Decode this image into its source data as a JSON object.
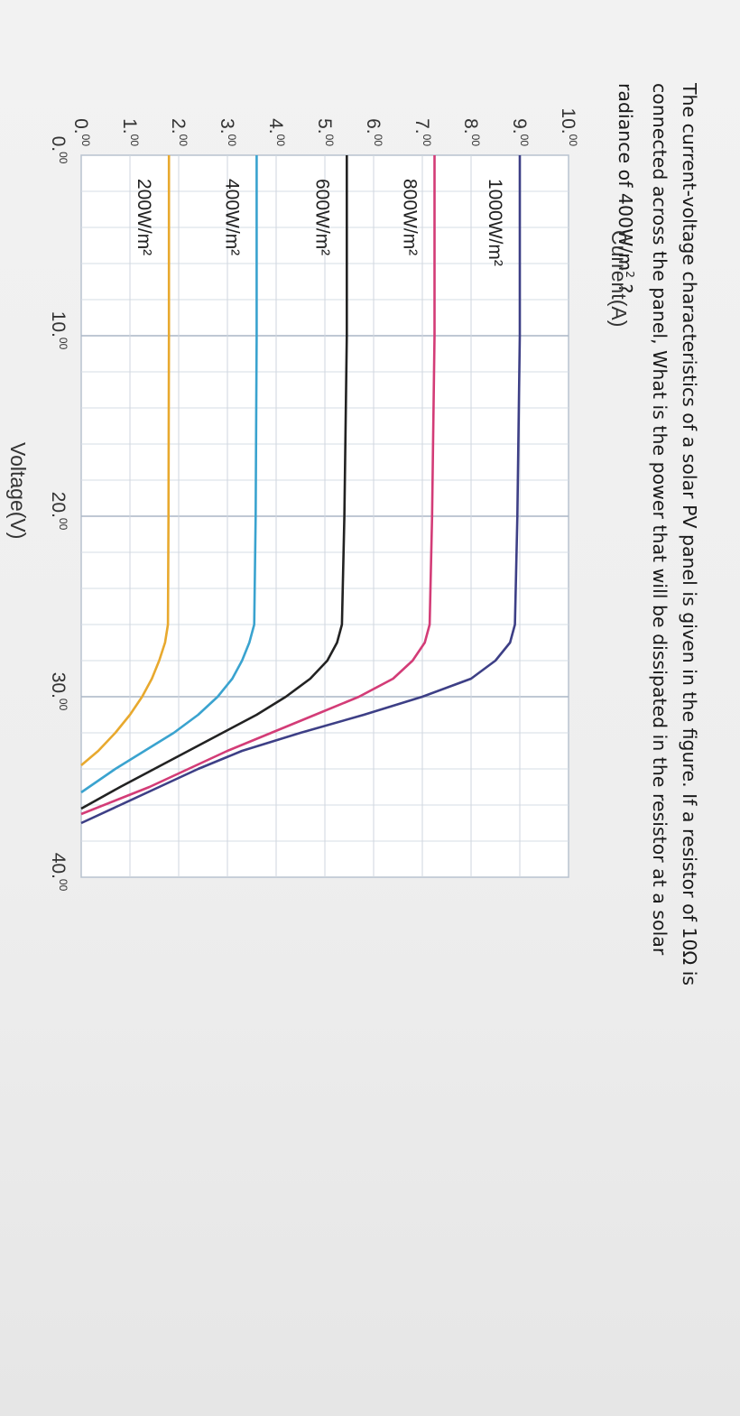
{
  "question": {
    "line1": "The current-voltage characteristics of a solar PV panel is given in the figure. If a resistor of 10Ω is",
    "line2": "connected across the panel, What is the power that will be dissipated in the resistor at a solar",
    "line3_pre": "radiance of 400W/m",
    "line3_sup": "2",
    "line3_post": " ?"
  },
  "chart_data": {
    "type": "line",
    "xlabel": "Voltage(V)",
    "ylabel": "Current(A)",
    "xlim": [
      0,
      40
    ],
    "ylim": [
      0,
      10
    ],
    "x_ticks": [
      {
        "value": 0,
        "main": "0.",
        "minor": "00"
      },
      {
        "value": 10,
        "main": "10.",
        "minor": "00"
      },
      {
        "value": 20,
        "main": "20.",
        "minor": "00"
      },
      {
        "value": 30,
        "main": "30.",
        "minor": "00"
      },
      {
        "value": 40,
        "main": "40.",
        "minor": "00"
      }
    ],
    "y_ticks": [
      {
        "value": 0,
        "main": "0.",
        "minor": "00"
      },
      {
        "value": 1,
        "main": "1.",
        "minor": "00"
      },
      {
        "value": 2,
        "main": "2.",
        "minor": "00"
      },
      {
        "value": 3,
        "main": "3.",
        "minor": "00"
      },
      {
        "value": 4,
        "main": "4.",
        "minor": "00"
      },
      {
        "value": 5,
        "main": "5.",
        "minor": "00"
      },
      {
        "value": 6,
        "main": "6.",
        "minor": "00"
      },
      {
        "value": 7,
        "main": "7.",
        "minor": "00"
      },
      {
        "value": 8,
        "main": "8.",
        "minor": "00"
      },
      {
        "value": 9,
        "main": "9.",
        "minor": "00"
      },
      {
        "value": 10,
        "main": "10.",
        "minor": "00"
      }
    ],
    "grid": true,
    "series": [
      {
        "name": "1000W/m²",
        "color": "#3d3f86",
        "x": [
          0,
          10,
          20,
          26,
          27,
          28,
          29,
          30,
          31,
          32,
          33,
          34,
          35,
          36,
          37
        ],
        "y": [
          9.0,
          9.0,
          8.95,
          8.9,
          8.8,
          8.5,
          8.0,
          7.0,
          5.8,
          4.5,
          3.3,
          2.4,
          1.6,
          0.8,
          0.0
        ]
      },
      {
        "name": "800W/m²",
        "color": "#d33c77",
        "x": [
          0,
          10,
          20,
          26,
          27,
          28,
          29,
          30,
          31,
          32,
          33,
          34,
          35,
          36.5
        ],
        "y": [
          7.25,
          7.25,
          7.2,
          7.15,
          7.05,
          6.8,
          6.4,
          5.7,
          4.8,
          3.9,
          3.0,
          2.2,
          1.4,
          0.0
        ]
      },
      {
        "name": "600W/m²",
        "color": "#222222",
        "x": [
          0,
          10,
          20,
          26,
          27,
          28,
          29,
          30,
          31,
          32,
          33,
          34,
          35,
          36.2
        ],
        "y": [
          5.45,
          5.45,
          5.4,
          5.35,
          5.25,
          5.05,
          4.7,
          4.2,
          3.6,
          2.9,
          2.2,
          1.5,
          0.8,
          0.0
        ]
      },
      {
        "name": "400W/m²",
        "color": "#3aa3cf",
        "x": [
          0,
          10,
          20,
          26,
          27,
          28,
          29,
          30,
          31,
          32,
          33,
          34,
          35.3
        ],
        "y": [
          3.6,
          3.6,
          3.58,
          3.55,
          3.45,
          3.3,
          3.1,
          2.8,
          2.4,
          1.9,
          1.3,
          0.7,
          0.0
        ]
      },
      {
        "name": "200W/m²",
        "color": "#e8a92e",
        "x": [
          0,
          10,
          20,
          26,
          27,
          28,
          29,
          30,
          31,
          32,
          33,
          33.8
        ],
        "y": [
          1.8,
          1.8,
          1.79,
          1.78,
          1.72,
          1.6,
          1.45,
          1.25,
          1.0,
          0.7,
          0.35,
          0.0
        ]
      }
    ]
  }
}
